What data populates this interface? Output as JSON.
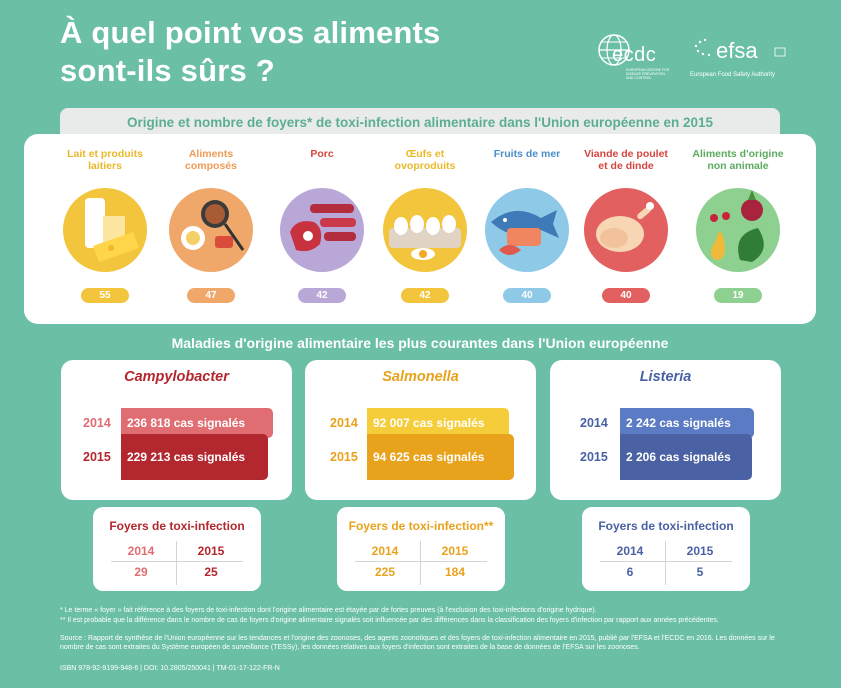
{
  "header": {
    "title_line1": "À quel point vos aliments",
    "title_line2": "sont-ils sûrs ?",
    "ecdc_logo_text": "ecdc",
    "ecdc_sub1": "EUROPEAN CENTRE FOR",
    "ecdc_sub2": "DISEASE PREVENTION",
    "ecdc_sub3": "AND CONTROL",
    "efsa_logo_text": "efsa",
    "efsa_sub": "European Food Safety Authority"
  },
  "foods_section": {
    "title": "Origine et nombre de foyers* de toxi-infection alimentaire dans l'Union européenne en 2015",
    "items": [
      {
        "label": "Lait et produits laitiers",
        "value": "55",
        "color": "#f2c53d"
      },
      {
        "label": "Aliments composés",
        "value": "47",
        "color": "#f0a86a"
      },
      {
        "label": "Porc",
        "value": "42",
        "color": "#b9a7d8"
      },
      {
        "label": "Œufs et ovoproduits",
        "value": "42",
        "color": "#f2c53d"
      },
      {
        "label": "Fruits de mer",
        "value": "40",
        "color": "#8fc9e8"
      },
      {
        "label": "Viande de poulet et de dinde",
        "value": "40",
        "color": "#e2605f"
      },
      {
        "label": "Aliments d'origine non animale",
        "value": "19",
        "color": "#8ed090"
      }
    ]
  },
  "diseases_section": {
    "title": "Maladies d'origine alimentaire les plus courantes dans l'Union européenne",
    "diseases": [
      {
        "name": "Campylobacter",
        "color": "#b3272f",
        "light": "#e06d72",
        "year1": "2014",
        "cases1": "236 818 cas signalés",
        "year2": "2015",
        "cases2": "229 213 cas signalés",
        "outbreak_title": "Foyers de toxi-infection",
        "out_y1": "2014",
        "out_v1": "29",
        "out_y2": "2015",
        "out_v2": "25"
      },
      {
        "name": "Salmonella",
        "color": "#e8a21c",
        "light": "#f5cd3a",
        "year1": "2014",
        "cases1": "92 007 cas signalés",
        "year2": "2015",
        "cases2": "94 625 cas signalés",
        "outbreak_title": "Foyers de toxi-infection**",
        "out_y1": "2014",
        "out_v1": "225",
        "out_y2": "2015",
        "out_v2": "184"
      },
      {
        "name": "Listeria",
        "color": "#4a62a3",
        "light": "#5b7cc4",
        "year1": "2014",
        "cases1": "2 242 cas signalés",
        "year2": "2015",
        "cases2": "2 206 cas signalés",
        "outbreak_title": "Foyers de toxi-infection",
        "out_y1": "2014",
        "out_v1": "6",
        "out_y2": "2015",
        "out_v2": "5"
      }
    ]
  },
  "footnotes": {
    "note1": "* Le terme « foyer » fait référence à des foyers de toxi-infection dont l'origine alimentaire est étayée par de fortes preuves (à l'exclusion des toxi-infections d'origine hydrique).",
    "note2": "** Il est probable que la différence dans le nombre de cas de foyers d'origine alimentaire signalés soit influencée par des différences dans la classification des foyers d'infection par rapport aux années précédentes.",
    "source": "Source : Rapport de synthèse de l'Union européenne sur les tendances et l'origine des zoonoses, des agents zoonotiques et des foyers de toxi-infection alimentaire en 2015, publié par l'EFSA et l'ECDC en 2016. Les données sur le nombre de cas sont extraites du Système européen de surveillance (TESSy), les données relatives aux foyers d'infection sont extraites de la base de données de l'EFSA sur les zoonoses.",
    "isbn": "ISBN 978-92-9199-948-6 | DOI: 10.2805/250041 | TM-01-17-122-FR-N"
  }
}
